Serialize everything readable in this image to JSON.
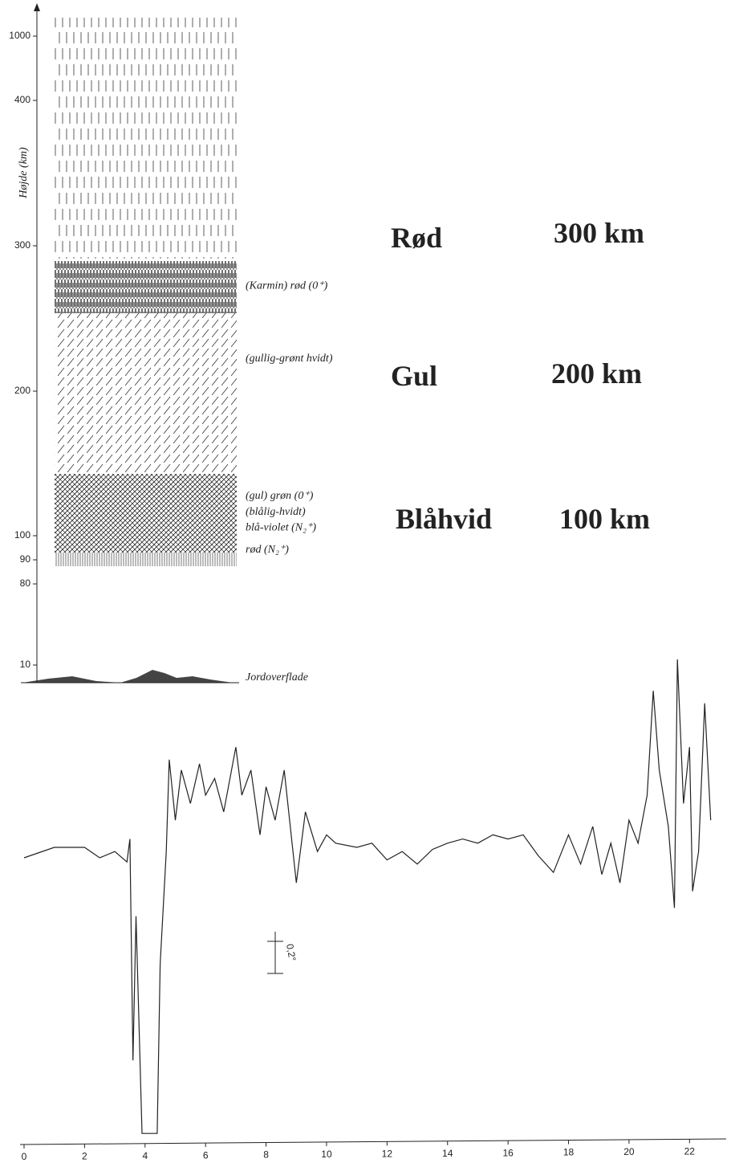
{
  "chart_data": [
    {
      "type": "aurora-layers",
      "y_label": "Højde (km)",
      "ylim": [
        0,
        1000
      ],
      "yticks": [
        10,
        80,
        90,
        100,
        200,
        300,
        400,
        1000
      ],
      "layers": [
        {
          "label": "(Karmin) rød (0⁺)",
          "altitude": 269
        },
        {
          "label": "(gullig-grønt hvidt)",
          "altitude": 219
        },
        {
          "label": "(gul) grøn (0⁺)",
          "altitude": 124
        },
        {
          "label": "(blålig-hvidt)",
          "altitude": 113
        },
        {
          "label": "blå-violet (N₂⁺)",
          "altitude": 102
        },
        {
          "label": "rød (N₂⁺)",
          "altitude": 92
        },
        {
          "label": "Jordoverflade",
          "altitude": 0
        }
      ],
      "annotations": [
        {
          "color_name": "Rød",
          "height": "300 km"
        },
        {
          "color_name": "Gul",
          "height": "200 km"
        },
        {
          "color_name": "Blåhvid",
          "height": "100 km"
        }
      ]
    },
    {
      "type": "line",
      "xlim": [
        0,
        23
      ],
      "xticks": [
        0,
        2,
        4,
        6,
        8,
        10,
        12,
        14,
        16,
        18,
        20,
        22
      ],
      "ylim": [
        -1.4,
        1.0
      ],
      "color": "#222222",
      "scale_bar": {
        "label": "0,2°",
        "value": 0.2
      },
      "x": [
        0,
        1,
        2,
        2.5,
        3.0,
        3.4,
        3.5,
        3.6,
        3.7,
        3.9,
        4.4,
        4.5,
        4.7,
        4.8,
        5.0,
        5.2,
        5.5,
        5.8,
        6.0,
        6.3,
        6.6,
        7.0,
        7.2,
        7.5,
        7.8,
        8.0,
        8.3,
        8.6,
        9.0,
        9.3,
        9.7,
        10.0,
        10.3,
        11,
        11.5,
        12,
        12.5,
        13,
        13.5,
        14,
        14.5,
        15,
        15.5,
        16,
        16.5,
        17,
        17.5,
        18,
        18.4,
        18.8,
        19.1,
        19.4,
        19.7,
        20,
        20.3,
        20.6,
        20.8,
        21.0,
        21.3,
        21.5,
        21.6,
        21.8,
        22.0,
        22.1,
        22.3,
        22.5,
        22.7
      ],
      "values": [
        0.0,
        0.05,
        0.05,
        0.0,
        0.03,
        -0.02,
        0.09,
        -0.97,
        -0.28,
        -1.32,
        -1.32,
        -0.51,
        0.03,
        0.47,
        0.18,
        0.42,
        0.26,
        0.45,
        0.3,
        0.38,
        0.22,
        0.53,
        0.3,
        0.42,
        0.11,
        0.34,
        0.18,
        0.42,
        -0.12,
        0.22,
        0.03,
        0.11,
        0.07,
        0.05,
        0.07,
        -0.01,
        0.03,
        -0.03,
        0.04,
        0.07,
        0.09,
        0.07,
        0.11,
        0.09,
        0.11,
        0.01,
        -0.07,
        0.11,
        -0.03,
        0.15,
        -0.08,
        0.07,
        -0.12,
        0.18,
        0.07,
        0.3,
        0.8,
        0.42,
        0.15,
        -0.24,
        0.95,
        0.26,
        0.53,
        -0.16,
        0.03,
        0.74,
        0.18
      ]
    }
  ]
}
